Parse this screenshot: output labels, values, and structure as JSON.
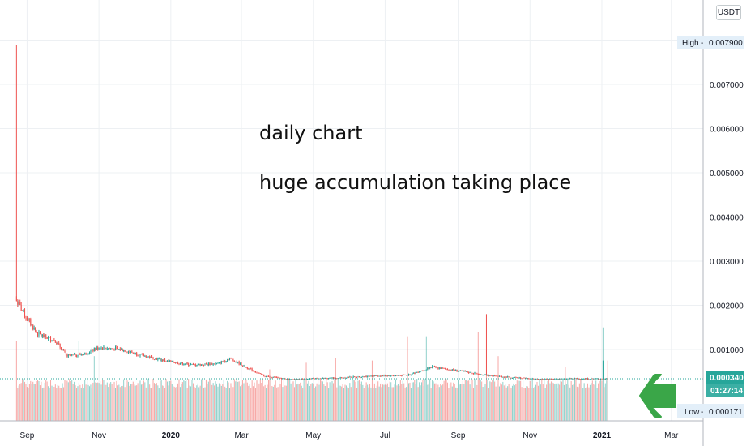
{
  "currency_button": "USDT",
  "annotations": [
    "daily chart",
    "huge accumulation taking place"
  ],
  "price_tags": {
    "high_label": "High",
    "high_value": "0.007900",
    "current_value": "0.000340",
    "countdown": "01:27:14",
    "low_label": "Low",
    "low_value": "0.000171"
  },
  "colors": {
    "up": "#26a69a",
    "down": "#ef5350",
    "arrow": "#3aa648",
    "tag_bg": "#e3eff9"
  },
  "chart_data": {
    "type": "candlestick",
    "title": "",
    "interval": "daily",
    "currency": "USDT",
    "y_ticks": [
      "0.001000",
      "0.002000",
      "0.003000",
      "0.004000",
      "0.005000",
      "0.006000",
      "0.007000"
    ],
    "ylim": [
      0,
      0.0086
    ],
    "x_ticks": [
      "Sep",
      "Nov",
      "2020",
      "Mar",
      "May",
      "Jul",
      "Sep",
      "Nov",
      "2021",
      "Mar"
    ],
    "x_tick_dates": [
      "2019-09-01",
      "2019-11-01",
      "2020-01-01",
      "2020-03-01",
      "2020-05-01",
      "2020-07-01",
      "2020-09-01",
      "2020-11-01",
      "2021-01-01",
      "2021-03-01"
    ],
    "xlim": [
      "2019-08-09",
      "2021-03-28"
    ],
    "first_candle": "2019-08-23",
    "last_candle": "2021-01-06",
    "high": 0.0079,
    "low": 0.000171,
    "last_close": 0.00034,
    "price_path": [
      [
        "2019-08-23",
        0.0021
      ],
      [
        "2019-09-01",
        0.0017
      ],
      [
        "2019-09-10",
        0.00135
      ],
      [
        "2019-09-25",
        0.0012
      ],
      [
        "2019-10-05",
        0.00085
      ],
      [
        "2019-10-20",
        0.0009
      ],
      [
        "2019-11-01",
        0.00105
      ],
      [
        "2019-11-20",
        0.001
      ],
      [
        "2019-12-10",
        0.00085
      ],
      [
        "2020-01-01",
        0.00072
      ],
      [
        "2020-01-20",
        0.00065
      ],
      [
        "2020-02-10",
        0.00068
      ],
      [
        "2020-02-20",
        0.0008
      ],
      [
        "2020-03-05",
        0.0006
      ],
      [
        "2020-03-20",
        0.0004
      ],
      [
        "2020-04-10",
        0.00033
      ],
      [
        "2020-05-15",
        0.00035
      ],
      [
        "2020-06-20",
        0.0004
      ],
      [
        "2020-07-20",
        0.00042
      ],
      [
        "2020-08-10",
        0.0006
      ],
      [
        "2020-09-01",
        0.00052
      ],
      [
        "2020-09-25",
        0.00042
      ],
      [
        "2020-10-15",
        0.00037
      ],
      [
        "2020-11-10",
        0.00033
      ],
      [
        "2020-12-10",
        0.00034
      ],
      [
        "2021-01-06",
        0.00034
      ]
    ],
    "wicks": [
      [
        "2019-08-23",
        0.0079
      ],
      [
        "2019-10-15",
        0.0012
      ],
      [
        "2020-08-10",
        0.00065
      ],
      [
        "2020-09-25",
        0.0018
      ],
      [
        "2021-01-02",
        0.00075
      ]
    ],
    "volume_spikes": [
      [
        "2019-08-23",
        0.0012
      ],
      [
        "2019-10-28",
        0.00085
      ],
      [
        "2020-03-25",
        0.00055
      ],
      [
        "2020-04-25",
        0.0007
      ],
      [
        "2020-05-20",
        0.0008
      ],
      [
        "2020-06-20",
        0.00075
      ],
      [
        "2020-07-20",
        0.0013
      ],
      [
        "2020-08-05",
        0.0013
      ],
      [
        "2020-09-18",
        0.0014
      ],
      [
        "2020-09-25",
        0.0018
      ],
      [
        "2020-10-05",
        0.00085
      ],
      [
        "2020-12-01",
        0.0006
      ],
      [
        "2021-01-02",
        0.0015
      ],
      [
        "2021-01-06",
        0.00075
      ]
    ]
  }
}
